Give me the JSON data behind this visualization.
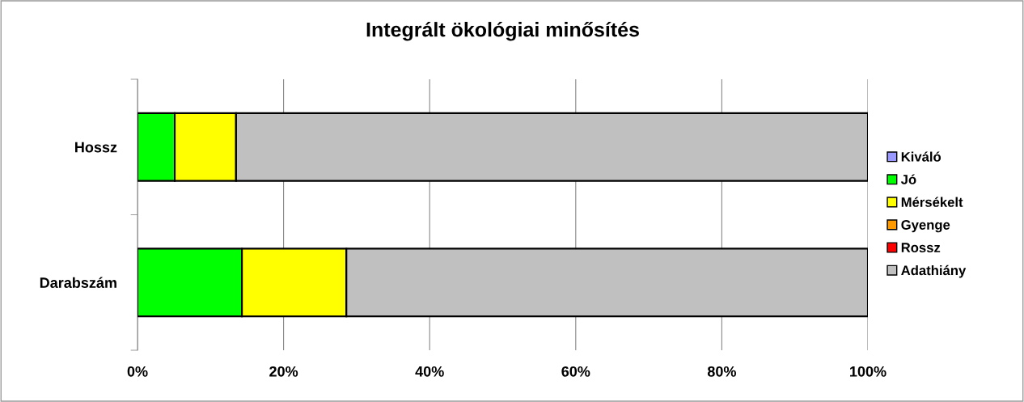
{
  "chart_data": {
    "type": "bar",
    "title": "Integrált ökológiai minősítés",
    "orientation": "horizontal",
    "stacked": true,
    "categories": [
      "Hossz",
      "Darabszám"
    ],
    "series": [
      {
        "name": "Kiváló",
        "color": "#9999ff",
        "values": [
          0,
          0
        ]
      },
      {
        "name": "Jó",
        "color": "#00ff00",
        "values": [
          5.1,
          14.3
        ]
      },
      {
        "name": "Mérsékelt",
        "color": "#ffff00",
        "values": [
          8.4,
          14.3
        ]
      },
      {
        "name": "Gyenge",
        "color": "#ff9900",
        "values": [
          0,
          0
        ]
      },
      {
        "name": "Rossz",
        "color": "#ff0000",
        "values": [
          0,
          0
        ]
      },
      {
        "name": "Adathiány",
        "color": "#c0c0c0",
        "values": [
          86.5,
          71.4
        ]
      }
    ],
    "xlim": [
      0,
      100
    ],
    "xticks": [
      {
        "value": 0,
        "label": "0%"
      },
      {
        "value": 20,
        "label": "20%"
      },
      {
        "value": 40,
        "label": "40%"
      },
      {
        "value": 60,
        "label": "60%"
      },
      {
        "value": 80,
        "label": "80%"
      },
      {
        "value": 100,
        "label": "100%"
      }
    ],
    "grid": "x",
    "legend": "right"
  }
}
